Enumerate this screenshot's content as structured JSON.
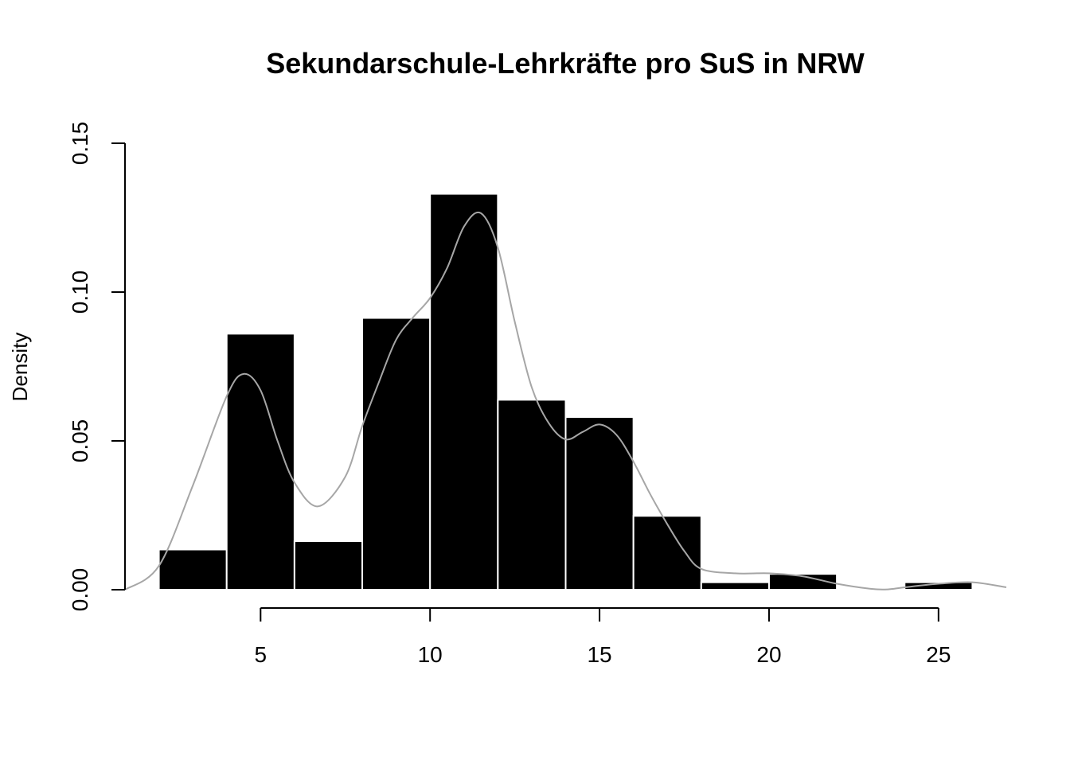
{
  "chart_data": {
    "type": "bar",
    "title": "Sekundarschule-Lehrkräfte pro SuS in NRW",
    "xlabel": "",
    "ylabel": "Density",
    "xlim": [
      1,
      27
    ],
    "ylim": [
      0,
      0.15
    ],
    "x_ticks": [
      5,
      10,
      15,
      20,
      25
    ],
    "y_ticks": [
      0.0,
      0.05,
      0.1,
      0.15
    ],
    "y_tick_labels": [
      "0.00",
      "0.05",
      "0.10",
      "0.15"
    ],
    "bins": [
      {
        "start": 2,
        "end": 4,
        "density": 0.0135
      },
      {
        "start": 4,
        "end": 6,
        "density": 0.086
      },
      {
        "start": 6,
        "end": 8,
        "density": 0.0163
      },
      {
        "start": 8,
        "end": 10,
        "density": 0.0913
      },
      {
        "start": 10,
        "end": 12,
        "density": 0.133
      },
      {
        "start": 12,
        "end": 14,
        "density": 0.0638
      },
      {
        "start": 14,
        "end": 16,
        "density": 0.058
      },
      {
        "start": 16,
        "end": 18,
        "density": 0.0248
      },
      {
        "start": 18,
        "end": 20,
        "density": 0.0025
      },
      {
        "start": 20,
        "end": 22,
        "density": 0.0053
      },
      {
        "start": 22,
        "end": 24,
        "density": 0
      },
      {
        "start": 24,
        "end": 26,
        "density": 0.0025
      }
    ],
    "density_curve": {
      "x": [
        1,
        2,
        3,
        4,
        4.5,
        5,
        5.5,
        6,
        6.7,
        7.5,
        8,
        8.5,
        9,
        9.5,
        10,
        10.5,
        11,
        11.5,
        12,
        12.5,
        13,
        13.5,
        14,
        14.5,
        15,
        15.5,
        16,
        16.5,
        17,
        17.5,
        18,
        19,
        20,
        21,
        22,
        23,
        23.5,
        24,
        25,
        26,
        27
      ],
      "y": [
        0.0,
        0.008,
        0.035,
        0.065,
        0.0725,
        0.067,
        0.05,
        0.036,
        0.028,
        0.038,
        0.055,
        0.07,
        0.084,
        0.0915,
        0.098,
        0.108,
        0.122,
        0.1265,
        0.115,
        0.09,
        0.068,
        0.056,
        0.0505,
        0.053,
        0.0555,
        0.052,
        0.043,
        0.032,
        0.022,
        0.013,
        0.007,
        0.0055,
        0.0055,
        0.0045,
        0.002,
        0.0003,
        0.0001,
        0.0008,
        0.002,
        0.0025,
        0.0008
      ]
    },
    "colors": {
      "bars": "#000000",
      "bar_border": "#ffffff",
      "density": "#a6a6a6"
    },
    "grid": false
  }
}
